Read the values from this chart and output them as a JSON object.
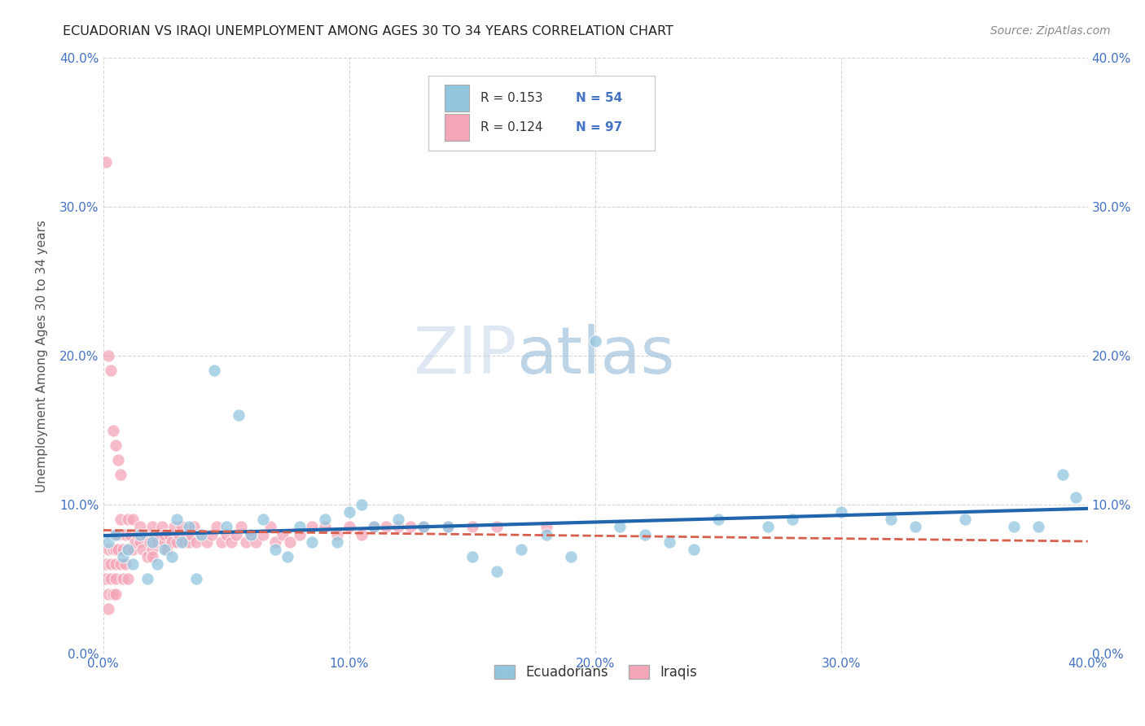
{
  "title": "ECUADORIAN VS IRAQI UNEMPLOYMENT AMONG AGES 30 TO 34 YEARS CORRELATION CHART",
  "source": "Source: ZipAtlas.com",
  "ylabel": "Unemployment Among Ages 30 to 34 years",
  "xlim": [
    0.0,
    0.4
  ],
  "ylim": [
    0.0,
    0.4
  ],
  "r_ecu": 0.153,
  "n_ecu": 54,
  "r_irq": 0.124,
  "n_irq": 97,
  "ecu_color": "#92c5de",
  "irq_color": "#f4a6b8",
  "ecu_line_color": "#2166ac",
  "irq_line_color": "#d6604d",
  "tick_color": "#4472c4",
  "background_color": "#ffffff",
  "ecu_scatter_x": [
    0.002,
    0.005,
    0.008,
    0.01,
    0.012,
    0.015,
    0.018,
    0.02,
    0.022,
    0.025,
    0.028,
    0.03,
    0.032,
    0.035,
    0.038,
    0.04,
    0.045,
    0.05,
    0.055,
    0.06,
    0.065,
    0.07,
    0.075,
    0.08,
    0.085,
    0.09,
    0.095,
    0.1,
    0.105,
    0.11,
    0.12,
    0.13,
    0.14,
    0.15,
    0.16,
    0.17,
    0.18,
    0.19,
    0.2,
    0.21,
    0.22,
    0.23,
    0.24,
    0.25,
    0.27,
    0.28,
    0.3,
    0.32,
    0.33,
    0.35,
    0.37,
    0.38,
    0.39,
    0.395
  ],
  "ecu_scatter_y": [
    0.075,
    0.08,
    0.065,
    0.07,
    0.06,
    0.08,
    0.05,
    0.075,
    0.06,
    0.07,
    0.065,
    0.09,
    0.075,
    0.085,
    0.05,
    0.08,
    0.19,
    0.085,
    0.16,
    0.08,
    0.09,
    0.07,
    0.065,
    0.085,
    0.075,
    0.09,
    0.075,
    0.095,
    0.1,
    0.085,
    0.09,
    0.085,
    0.085,
    0.065,
    0.055,
    0.07,
    0.08,
    0.065,
    0.21,
    0.085,
    0.08,
    0.075,
    0.07,
    0.09,
    0.085,
    0.09,
    0.095,
    0.09,
    0.085,
    0.09,
    0.085,
    0.085,
    0.12,
    0.105
  ],
  "irq_scatter_x": [
    0.001,
    0.001,
    0.002,
    0.002,
    0.002,
    0.003,
    0.003,
    0.004,
    0.004,
    0.005,
    0.005,
    0.005,
    0.005,
    0.005,
    0.006,
    0.006,
    0.007,
    0.007,
    0.008,
    0.008,
    0.009,
    0.009,
    0.01,
    0.01,
    0.01,
    0.011,
    0.012,
    0.012,
    0.013,
    0.014,
    0.015,
    0.015,
    0.016,
    0.017,
    0.018,
    0.019,
    0.02,
    0.02,
    0.02,
    0.021,
    0.022,
    0.023,
    0.024,
    0.025,
    0.025,
    0.026,
    0.027,
    0.028,
    0.029,
    0.03,
    0.031,
    0.032,
    0.033,
    0.034,
    0.035,
    0.036,
    0.037,
    0.038,
    0.04,
    0.042,
    0.044,
    0.046,
    0.048,
    0.05,
    0.052,
    0.054,
    0.056,
    0.058,
    0.06,
    0.062,
    0.065,
    0.068,
    0.07,
    0.073,
    0.076,
    0.08,
    0.085,
    0.09,
    0.095,
    0.1,
    0.105,
    0.11,
    0.115,
    0.12,
    0.125,
    0.13,
    0.14,
    0.15,
    0.16,
    0.18,
    0.001,
    0.002,
    0.003,
    0.004,
    0.005,
    0.006,
    0.007
  ],
  "irq_scatter_y": [
    0.06,
    0.05,
    0.07,
    0.04,
    0.03,
    0.06,
    0.05,
    0.07,
    0.04,
    0.08,
    0.07,
    0.06,
    0.05,
    0.04,
    0.08,
    0.07,
    0.09,
    0.06,
    0.07,
    0.05,
    0.08,
    0.06,
    0.09,
    0.07,
    0.05,
    0.08,
    0.07,
    0.09,
    0.075,
    0.08,
    0.075,
    0.085,
    0.07,
    0.08,
    0.065,
    0.075,
    0.085,
    0.07,
    0.065,
    0.08,
    0.075,
    0.08,
    0.085,
    0.075,
    0.08,
    0.07,
    0.08,
    0.075,
    0.085,
    0.075,
    0.08,
    0.085,
    0.075,
    0.08,
    0.075,
    0.08,
    0.085,
    0.075,
    0.08,
    0.075,
    0.08,
    0.085,
    0.075,
    0.08,
    0.075,
    0.08,
    0.085,
    0.075,
    0.08,
    0.075,
    0.08,
    0.085,
    0.075,
    0.08,
    0.075,
    0.08,
    0.085,
    0.085,
    0.08,
    0.085,
    0.08,
    0.085,
    0.085,
    0.085,
    0.085,
    0.085,
    0.085,
    0.085,
    0.085,
    0.085,
    0.33,
    0.2,
    0.19,
    0.15,
    0.14,
    0.13,
    0.12
  ]
}
